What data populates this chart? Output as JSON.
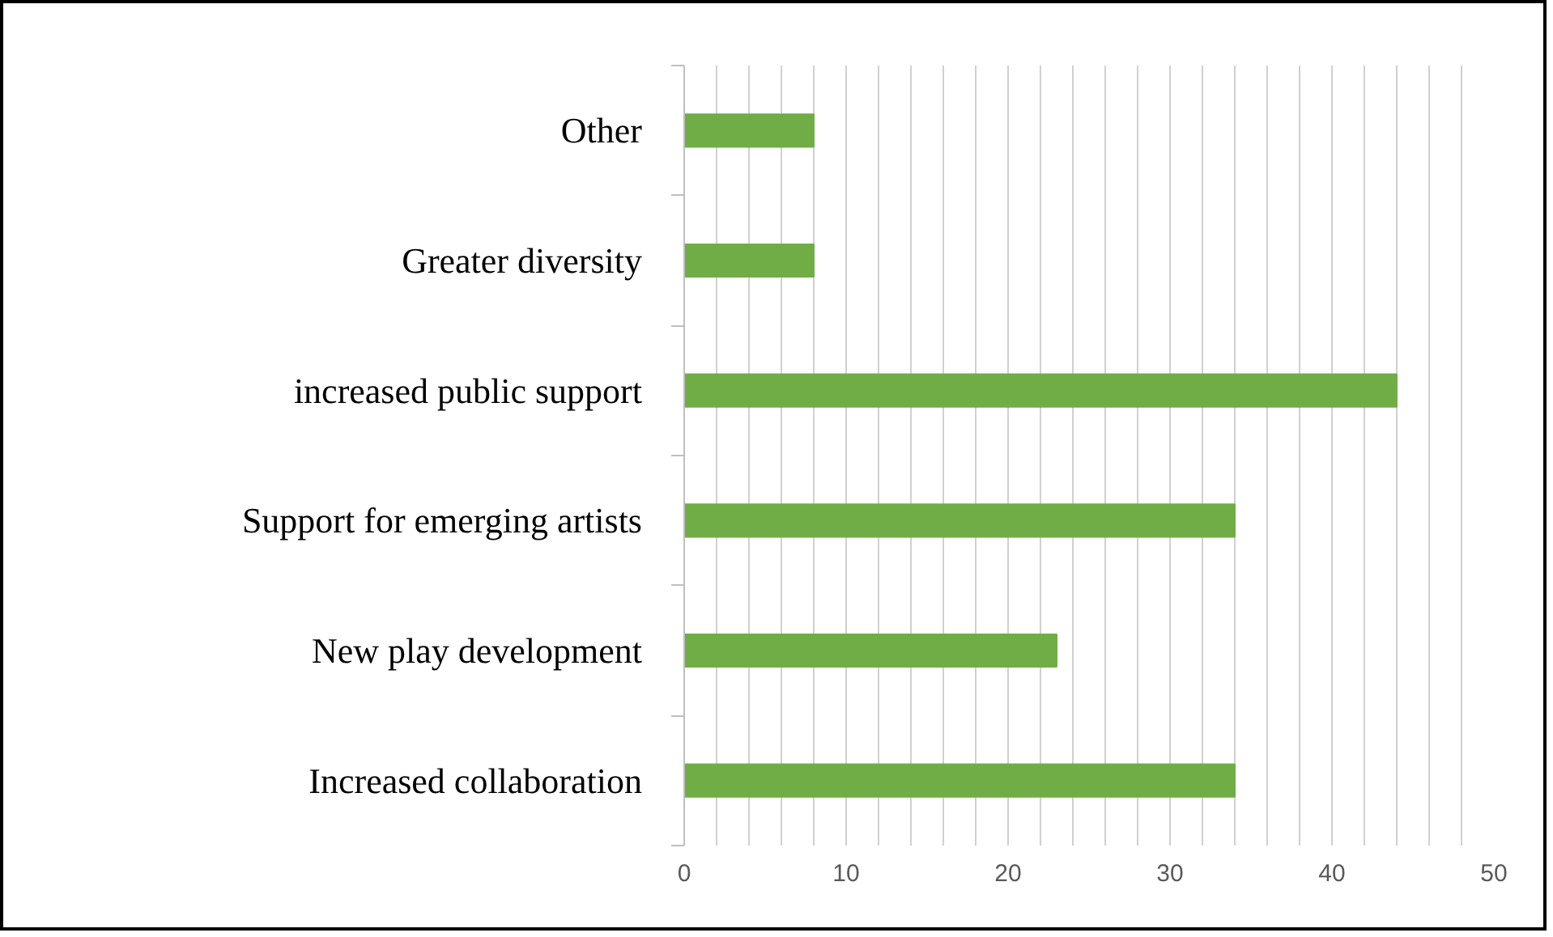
{
  "chart_data": {
    "type": "bar",
    "orientation": "horizontal",
    "categories": [
      "Other",
      "Greater diversity",
      "increased public support",
      "Support for emerging artists",
      "New play development",
      "Increased collaboration"
    ],
    "values": [
      8,
      8,
      44,
      34,
      23,
      34
    ],
    "color": "#70ad47",
    "xlim": [
      0,
      50
    ],
    "xticks": [
      0,
      {
        "value": 2,
        "label": null
      },
      {
        "value": 4,
        "label": null
      },
      {
        "value": 6,
        "label": null
      },
      {
        "value": 8,
        "label": null
      },
      10,
      {
        "value": 12,
        "label": null
      },
      {
        "value": 14,
        "label": null
      },
      {
        "value": 16,
        "label": null
      },
      {
        "value": 18,
        "label": null
      },
      20,
      {
        "value": 22,
        "label": null
      },
      {
        "value": 24,
        "label": null
      },
      {
        "value": 26,
        "label": null
      },
      {
        "value": 28,
        "label": null
      },
      30,
      {
        "value": 32,
        "label": null
      },
      {
        "value": 34,
        "label": null
      },
      {
        "value": 36,
        "label": null
      },
      {
        "value": 38,
        "label": null
      },
      40,
      {
        "value": 42,
        "label": null
      },
      {
        "value": 44,
        "label": null
      },
      {
        "value": 46,
        "label": null
      },
      {
        "value": 48,
        "label": null
      },
      50
    ],
    "grid": "x"
  }
}
